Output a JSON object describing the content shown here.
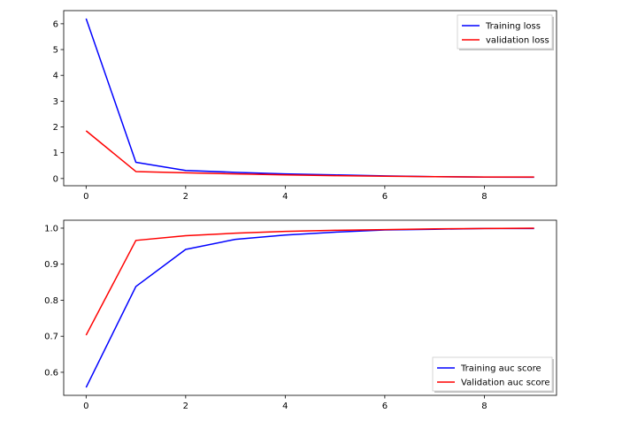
{
  "chart_data": [
    {
      "type": "line",
      "x": [
        0,
        1,
        2,
        3,
        4,
        5,
        6,
        7,
        8,
        9
      ],
      "series": [
        {
          "name": "Training loss",
          "color": "#0000ff",
          "values": [
            6.2,
            0.63,
            0.31,
            0.24,
            0.18,
            0.14,
            0.1,
            0.07,
            0.055,
            0.05
          ]
        },
        {
          "name": "validation loss",
          "color": "#ff0000",
          "values": [
            1.85,
            0.27,
            0.22,
            0.18,
            0.14,
            0.11,
            0.09,
            0.07,
            0.06,
            0.06
          ]
        }
      ],
      "xlim": [
        -0.45,
        9.45
      ],
      "ylim": [
        -0.28,
        6.51
      ],
      "xticks": [
        0,
        2,
        4,
        6,
        8
      ],
      "yticks": [
        0,
        1,
        2,
        3,
        4,
        5,
        6
      ],
      "legend": "top-right",
      "title": "",
      "xlabel": "",
      "ylabel": ""
    },
    {
      "type": "line",
      "x": [
        0,
        1,
        2,
        3,
        4,
        5,
        6,
        7,
        8,
        9
      ],
      "series": [
        {
          "name": "Training auc score",
          "color": "#0000ff",
          "values": [
            0.558,
            0.838,
            0.941,
            0.969,
            0.981,
            0.989,
            0.995,
            0.997,
            0.999,
            0.999
          ]
        },
        {
          "name": "Validation auc score",
          "color": "#ff0000",
          "values": [
            0.703,
            0.966,
            0.979,
            0.986,
            0.991,
            0.994,
            0.996,
            0.998,
            0.999,
            1.0
          ]
        }
      ],
      "xlim": [
        -0.45,
        9.45
      ],
      "ylim": [
        0.536,
        1.022
      ],
      "xticks": [
        0,
        2,
        4,
        6,
        8
      ],
      "yticks": [
        0.6,
        0.7,
        0.8,
        0.9,
        1.0
      ],
      "ytick_labels": [
        "0.6",
        "0.7",
        "0.8",
        "0.9",
        "1.0"
      ],
      "legend": "bottom-right",
      "title": "",
      "xlabel": "",
      "ylabel": ""
    }
  ]
}
